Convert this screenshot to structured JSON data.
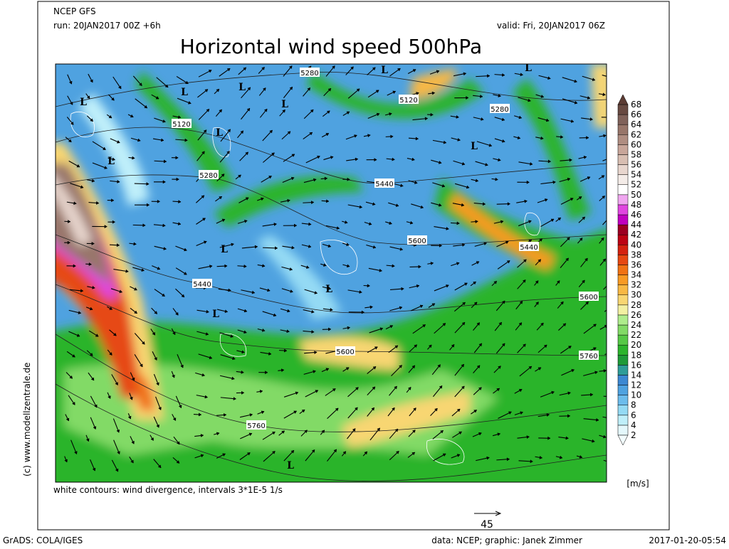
{
  "header": {
    "model": "NCEP GFS",
    "run": "run: 20JAN2017 00Z +6h",
    "valid": "valid: Fri, 20JAN2017 06Z",
    "title": "Horizontal wind speed 500hPa"
  },
  "map": {
    "contour_labels": [
      "5280",
      "5120",
      "5120",
      "5280",
      "5280",
      "5440",
      "5600",
      "5440",
      "5440",
      "5600",
      "5600",
      "5760",
      "5760"
    ],
    "low_markers": [
      "L",
      "L",
      "L",
      "L",
      "L",
      "L",
      "L",
      "L",
      "L",
      "L",
      "L",
      "L",
      "L"
    ]
  },
  "colorbar": {
    "labels": [
      2,
      4,
      6,
      8,
      10,
      12,
      14,
      16,
      18,
      20,
      22,
      24,
      26,
      28,
      30,
      32,
      34,
      36,
      38,
      40,
      42,
      44,
      46,
      48,
      50,
      52,
      54,
      56,
      58,
      60,
      62,
      64,
      66,
      68
    ],
    "colors": [
      "#e4f8fc",
      "#bfeffa",
      "#94daf4",
      "#6cbcec",
      "#4fa2e0",
      "#3c88d2",
      "#2e9c98",
      "#1e9a38",
      "#2cb42c",
      "#56c846",
      "#82da66",
      "#aeec8c",
      "#f2f0a2",
      "#f8d672",
      "#f8b844",
      "#f89a24",
      "#f07214",
      "#e64812",
      "#d42210",
      "#bc0414",
      "#9c0022",
      "#c000c0",
      "#e046e0",
      "#f0a6f0",
      "#ffffff",
      "#f4ece8",
      "#e8d6ce",
      "#d8beb2",
      "#c8a69a",
      "#b08e82",
      "#98766a",
      "#80625a",
      "#684a42"
    ],
    "below_color": "#f2fcfe",
    "above_color": "#5c3c34",
    "unit": "[m/s]"
  },
  "footer": {
    "note": "white contours: wind divergence, intervals 3*1E-5 1/s",
    "vector_scale": "45",
    "side": "(c) www.modellzentrale.de",
    "credit_left": "GrADS: COLA/IGES",
    "credit_center": "data: NCEP; graphic: Janek Zimmer",
    "timestamp": "2017-01-20-05:54"
  }
}
